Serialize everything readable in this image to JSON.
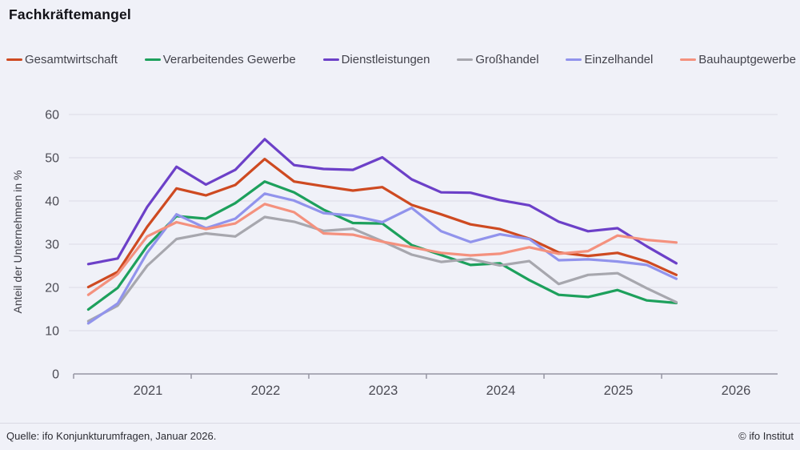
{
  "header": {
    "title": "Fachkräftemangel"
  },
  "chart_data": {
    "type": "line",
    "title": "Fachkräftemangel",
    "ylabel": "Anteil der Unternehmen in %",
    "xlabel": "",
    "ylim": [
      0,
      60
    ],
    "yticks": [
      0,
      10,
      20,
      30,
      40,
      50,
      60
    ],
    "x_year_ticks": [
      "2021",
      "2022",
      "2023",
      "2024",
      "2025",
      "2026"
    ],
    "grid": "horizontal",
    "legend_position": "top",
    "frequency": "quarterly",
    "categories": [
      "2021-Q1",
      "2021-Q2",
      "2021-Q3",
      "2021-Q4",
      "2022-Q1",
      "2022-Q2",
      "2022-Q3",
      "2022-Q4",
      "2023-Q1",
      "2023-Q2",
      "2023-Q3",
      "2023-Q4",
      "2024-Q1",
      "2024-Q2",
      "2024-Q3",
      "2024-Q4",
      "2025-Q1",
      "2025-Q2",
      "2025-Q3",
      "2025-Q4",
      "2026-Q1"
    ],
    "series": [
      {
        "name": "Gesamtwirtschaft",
        "color": "#ce4a21",
        "values": [
          20.1,
          23.6,
          34.0,
          42.9,
          41.3,
          43.7,
          49.7,
          44.5,
          43.4,
          42.4,
          43.2,
          39.1,
          36.9,
          34.6,
          33.5,
          31.3,
          28.1,
          27.3,
          28.0,
          26.0,
          22.9
        ]
      },
      {
        "name": "Verarbeitendes Gewerbe",
        "color": "#1da05c",
        "values": [
          14.9,
          19.9,
          29.6,
          36.5,
          35.9,
          39.5,
          44.5,
          42.0,
          38.0,
          34.9,
          34.8,
          29.8,
          27.5,
          25.2,
          25.6,
          21.7,
          18.3,
          17.8,
          19.4,
          17.0,
          16.4
        ]
      },
      {
        "name": "Dienstleistungen",
        "color": "#6c40c8",
        "values": [
          25.4,
          26.7,
          38.6,
          47.9,
          43.8,
          47.2,
          54.3,
          48.3,
          47.4,
          47.2,
          50.1,
          45.0,
          42.0,
          41.9,
          40.2,
          39.0,
          35.2,
          33.0,
          33.7,
          29.5,
          25.6
        ]
      },
      {
        "name": "Großhandel",
        "color": "#a7a7ae",
        "values": [
          12.2,
          15.8,
          25.0,
          31.2,
          32.5,
          31.8,
          36.3,
          35.2,
          33.1,
          33.6,
          30.7,
          27.6,
          25.9,
          26.6,
          25.1,
          26.1,
          20.8,
          22.9,
          23.3,
          19.8,
          16.6
        ]
      },
      {
        "name": "Einzelhandel",
        "color": "#9193ec",
        "values": [
          11.7,
          16.3,
          28.0,
          36.9,
          33.7,
          35.9,
          41.7,
          40.1,
          37.2,
          36.6,
          35.1,
          38.4,
          33.0,
          30.5,
          32.3,
          31.2,
          26.3,
          26.5,
          26.0,
          25.2,
          22.0
        ]
      },
      {
        "name": "Bauhauptgewerbe",
        "color": "#f4917e",
        "values": [
          18.3,
          23.1,
          31.8,
          35.1,
          33.5,
          34.8,
          39.3,
          37.4,
          32.5,
          32.2,
          30.6,
          29.3,
          28.0,
          27.4,
          27.8,
          29.3,
          27.8,
          28.4,
          32.0,
          31.0,
          30.4
        ]
      }
    ]
  },
  "footer": {
    "source": "Quelle: ifo Konjunkturumfragen, Januar 2026.",
    "copyright": "© ifo Institut"
  }
}
